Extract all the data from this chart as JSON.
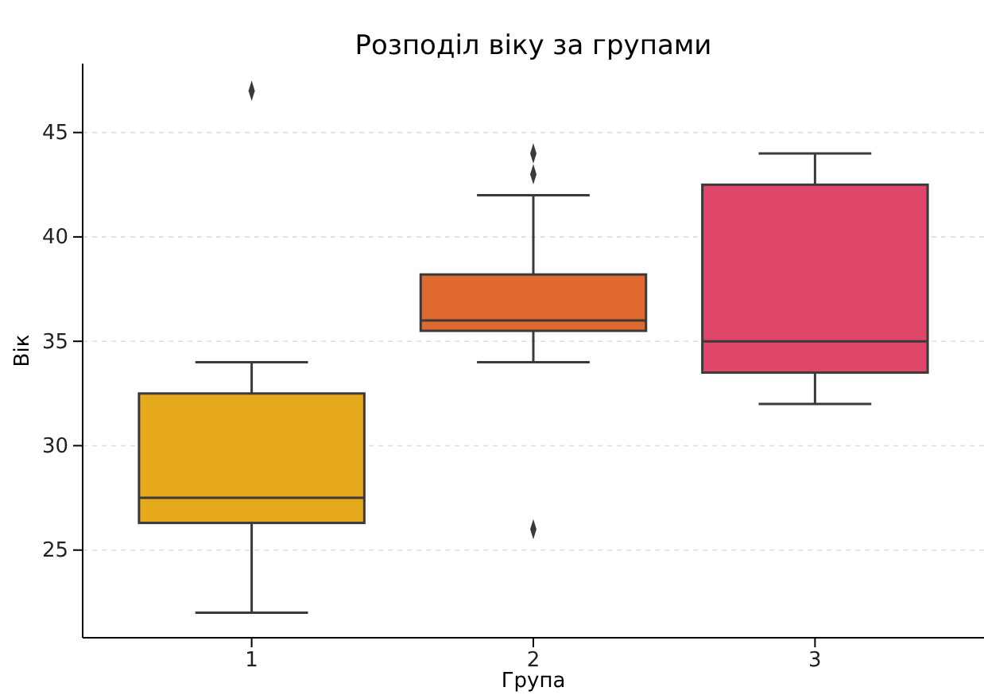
{
  "chart_data": {
    "type": "box",
    "title": "Розподіл віку за групами",
    "xlabel": "Група",
    "ylabel": "Вік",
    "categories": [
      "1",
      "2",
      "3"
    ],
    "colors": [
      "#e6a91c",
      "#e0692f",
      "#e0466a"
    ],
    "boxes": [
      {
        "low": 22,
        "q1": 26.3,
        "median": 27.5,
        "q3": 32.5,
        "high": 34,
        "outliers": [
          47
        ]
      },
      {
        "low": 34,
        "q1": 35.5,
        "median": 36,
        "q3": 38.2,
        "high": 42,
        "outliers": [
          44,
          43,
          26
        ]
      },
      {
        "low": 32,
        "q1": 33.5,
        "median": 35,
        "q3": 42.5,
        "high": 44
      }
    ],
    "ylim": [
      20.8,
      48.3
    ],
    "yticks": [
      25,
      30,
      35,
      40,
      45
    ],
    "grid": "y"
  }
}
